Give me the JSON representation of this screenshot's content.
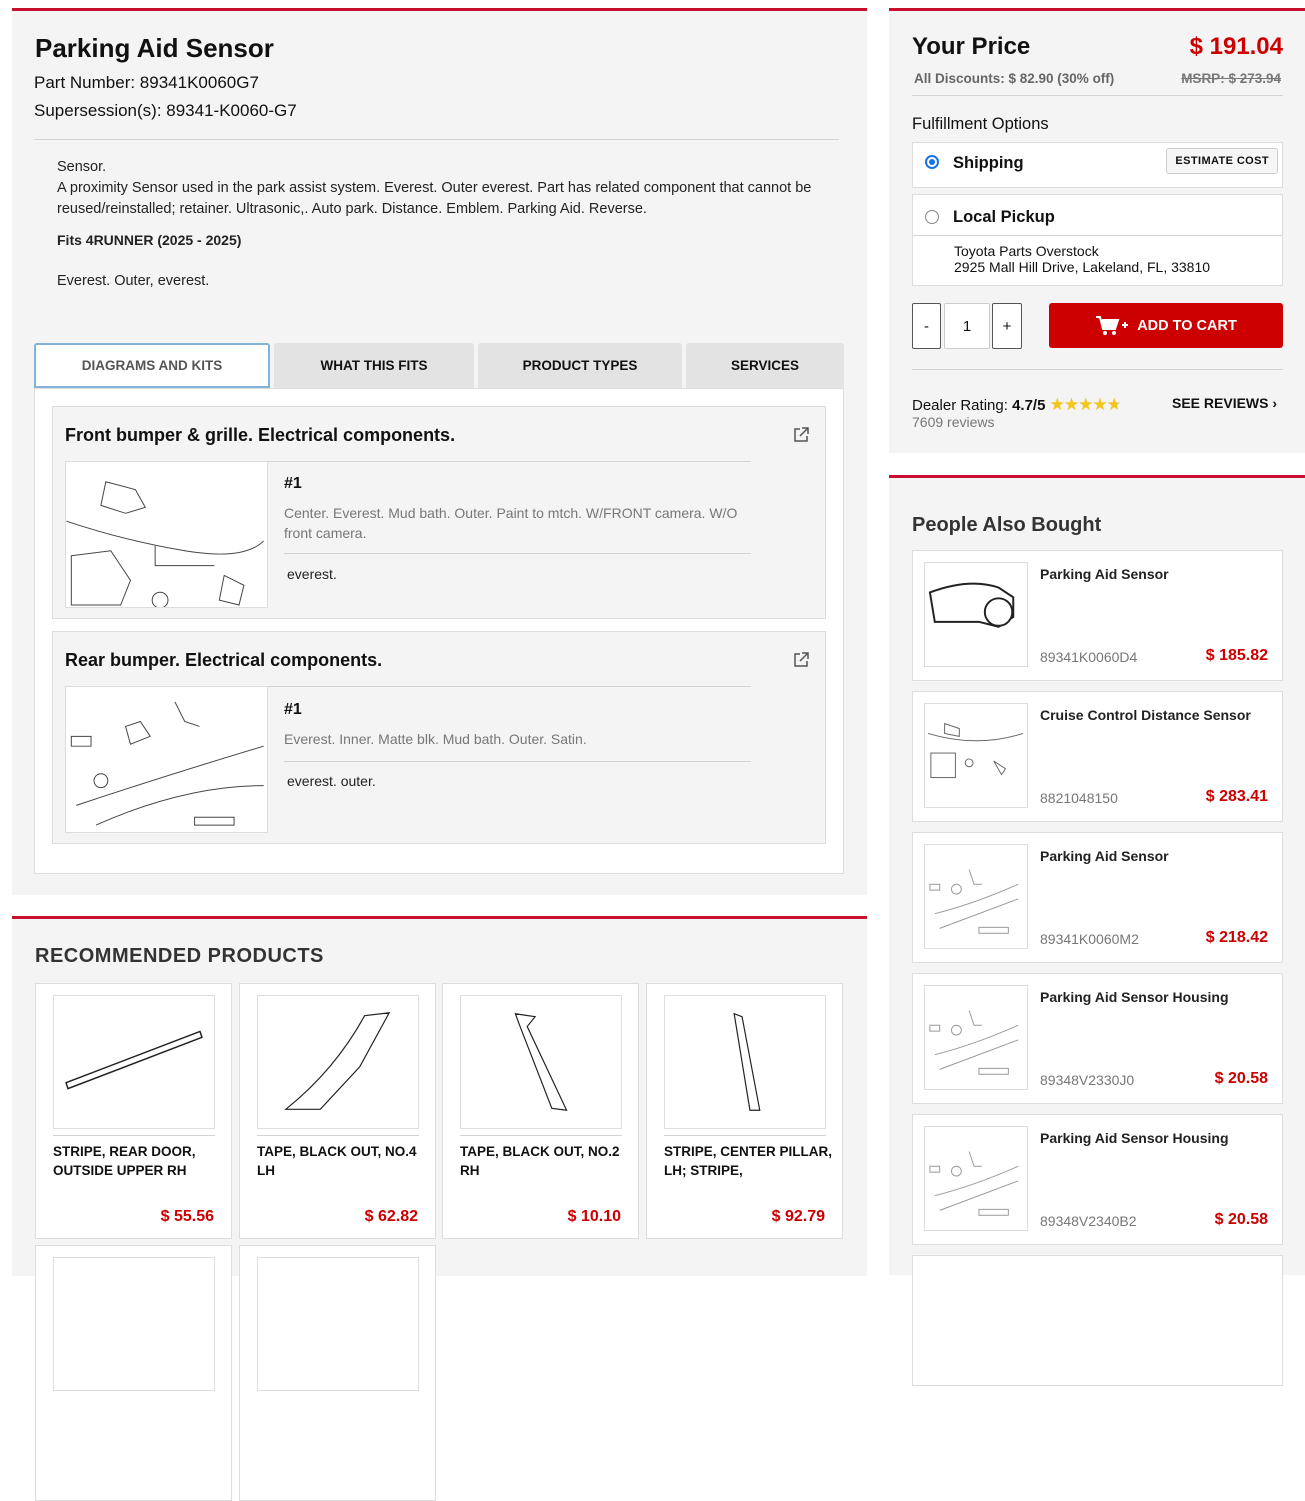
{
  "product": {
    "title": "Parking Aid Sensor",
    "part_number": "Part Number: 89341K0060G7",
    "supersession": "Supersession(s): 89341-K0060-G7",
    "desc_short": "Sensor.",
    "desc_long": "A proximity Sensor used in the park assist system. Everest. Outer everest. Part has related component that cannot be reused/reinstalled; retainer. Ultrasonic,. Auto park. Distance. Emblem. Parking Aid. Reverse.",
    "fits": "Fits 4RUNNER (2025 - 2025)",
    "notes": "Everest. Outer, everest."
  },
  "tabs": [
    {
      "label": "DIAGRAMS AND KITS",
      "active": true
    },
    {
      "label": "WHAT THIS FITS"
    },
    {
      "label": "PRODUCT TYPES"
    },
    {
      "label": "SERVICES"
    }
  ],
  "diagrams": [
    {
      "title": "Front bumper & grille. Electrical components.",
      "num": "#1",
      "text": "Center. Everest. Mud bath. Outer. Paint to mtch. W/FRONT camera. W/O front camera.",
      "sub": "everest."
    },
    {
      "title": "Rear bumper. Electrical components.",
      "num": "#1",
      "text": "Everest. Inner. Matte blk. Mud bath. Outer. Satin.",
      "sub": "everest. outer."
    }
  ],
  "recommended": {
    "title": "RECOMMENDED PRODUCTS",
    "items": [
      {
        "name": "STRIPE, REAR DOOR, OUTSIDE UPPER RH",
        "price": "$ 55.56"
      },
      {
        "name": "TAPE, BLACK OUT, NO.4 LH",
        "price": "$ 62.82"
      },
      {
        "name": "TAPE, BLACK OUT, NO.2 RH",
        "price": "$ 10.10"
      },
      {
        "name": "STRIPE, CENTER PILLAR, LH; STRIPE,",
        "price": "$ 92.79"
      }
    ]
  },
  "pricing": {
    "label": "Your Price",
    "price": "$ 191.04",
    "discounts": "All Discounts: $ 82.90 (30% off)",
    "msrp": "MSRP: $ 273.94"
  },
  "fulfillment": {
    "title": "Fulfillment Options",
    "shipping": "Shipping",
    "estimate": "ESTIMATE COST",
    "pickup": "Local Pickup",
    "store": "Toyota Parts Overstock",
    "address": "2925 Mall Hill Drive, Lakeland, FL, 33810",
    "selected": "Shipping"
  },
  "cart": {
    "minus": "-",
    "qty": "1",
    "plus": "+",
    "add": "ADD TO CART"
  },
  "rating": {
    "label": "Dealer Rating:",
    "value": "4.7/5",
    "stars": 4.7,
    "reviews": "7609 reviews",
    "see": "SEE REVIEWS"
  },
  "also": {
    "title": "People Also Bought",
    "items": [
      {
        "name": "Parking Aid Sensor",
        "pn": "89341K0060D4",
        "price": "$ 185.82"
      },
      {
        "name": "Cruise Control Distance Sensor",
        "pn": "8821048150",
        "price": "$ 283.41"
      },
      {
        "name": "Parking Aid Sensor",
        "pn": "89341K0060M2",
        "price": "$ 218.42"
      },
      {
        "name": "Parking Aid Sensor Housing",
        "pn": "89348V2330J0",
        "price": "$ 20.58"
      },
      {
        "name": "Parking Aid Sensor Housing",
        "pn": "89348V2340B2",
        "price": "$ 20.58"
      }
    ]
  },
  "colors": {
    "accent": "#c8102e",
    "price": "#cc0000",
    "radio": "#1a73e8",
    "star": "#f5c518"
  }
}
